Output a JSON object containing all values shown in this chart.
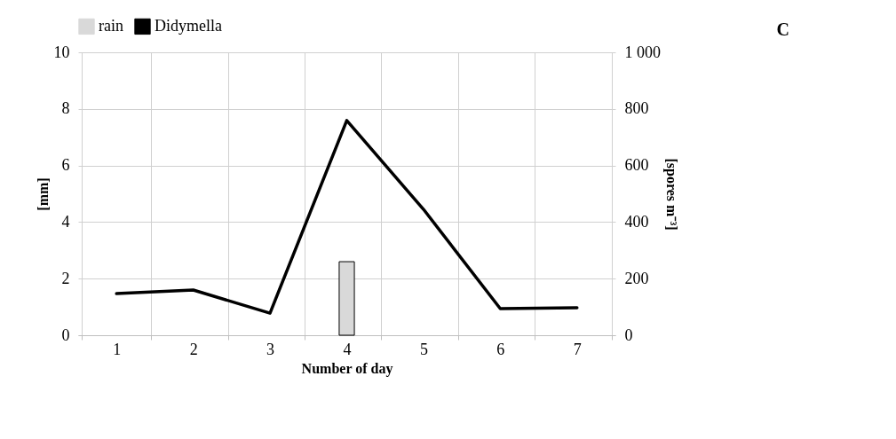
{
  "chart_data": {
    "type": "bar",
    "categories": [
      "1",
      "2",
      "3",
      "4",
      "5",
      "6",
      "7"
    ],
    "xlabel": "Number of day",
    "ylabel": "[mm]",
    "y2label": "[spores m⁻³]",
    "ylim": [
      0,
      10
    ],
    "yticks": [
      0,
      2,
      4,
      6,
      8,
      10
    ],
    "y2lim": [
      0,
      1000
    ],
    "y2ticks": [
      0,
      200,
      400,
      600,
      800,
      {
        "value": 1000,
        "label": "1 000"
      }
    ],
    "series": [
      {
        "name": "rain",
        "color": "#d9d9d9",
        "values": [
          0,
          0,
          0,
          2.6,
          0,
          0,
          0
        ]
      },
      {
        "name": "Didymella",
        "type": "line",
        "axis": "y2",
        "color": "#000000",
        "values": [
          147,
          160,
          78,
          759,
          445,
          94,
          97
        ]
      }
    ],
    "grid": true,
    "legend": "top",
    "line_style": "solid",
    "annotations": [
      "C"
    ]
  }
}
